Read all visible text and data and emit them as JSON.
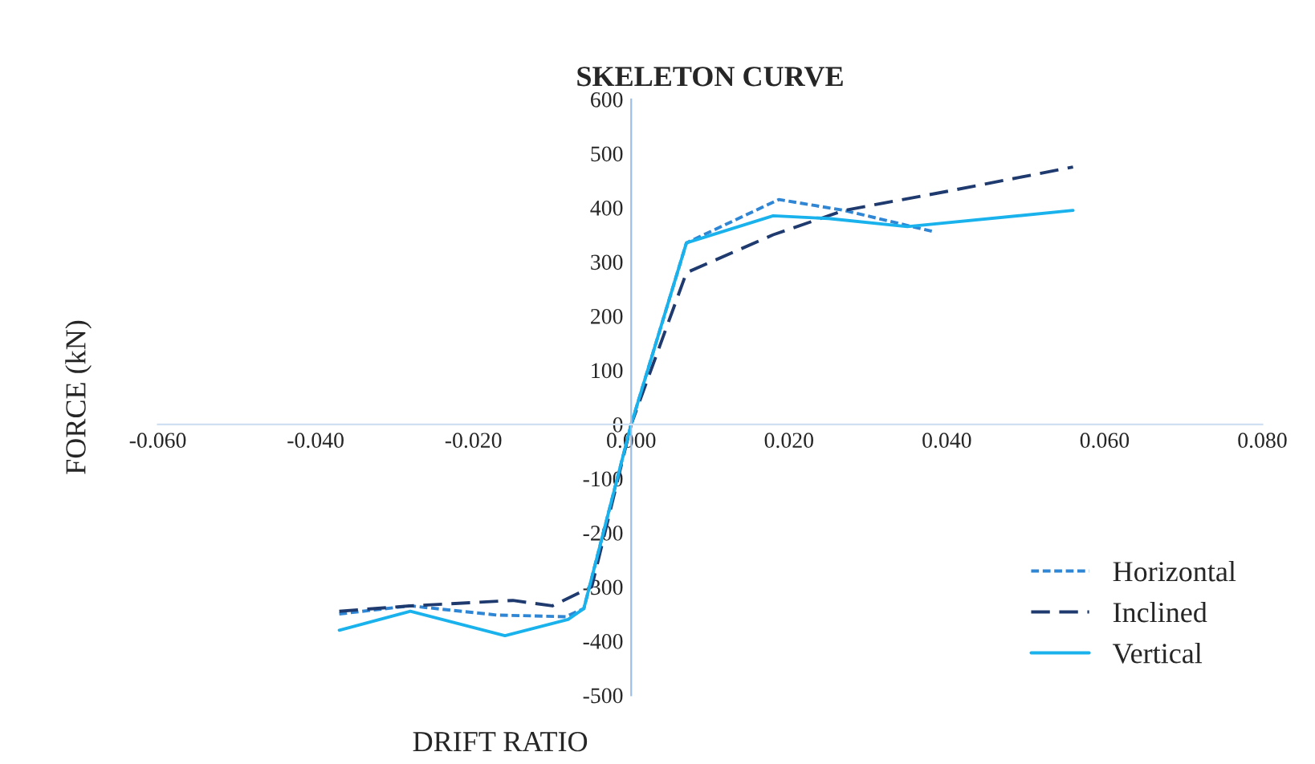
{
  "chart_data": {
    "type": "line",
    "title": "SKELETON CURVE",
    "xlabel": "DRIFT RATIO",
    "ylabel": "FORCE (kN)",
    "xlim": [
      -0.06,
      0.08
    ],
    "xticks": [
      {
        "value": -0.06,
        "label": "-0.060"
      },
      {
        "value": -0.04,
        "label": "-0.040"
      },
      {
        "value": -0.02,
        "label": "-0.020"
      },
      {
        "value": 0,
        "label": "0.000"
      },
      {
        "value": 0.02,
        "label": "0.020"
      },
      {
        "value": 0.04,
        "label": "0.040"
      },
      {
        "value": 0.06,
        "label": "0.060"
      },
      {
        "value": 0.08,
        "label": "0.080"
      }
    ],
    "ylim": [
      -500,
      600
    ],
    "yticks": [
      -500,
      -400,
      -300,
      -200,
      -100,
      0,
      100,
      200,
      300,
      400,
      500,
      600
    ],
    "grid": false,
    "legend": "bottom right",
    "series": [
      {
        "name": "Horizontal",
        "color": "#2e86d4",
        "line_style": "dotted",
        "x": [
          -0.037,
          -0.028,
          -0.017,
          -0.0083,
          -0.006,
          0,
          0.007,
          0.0187,
          0.027,
          0.0385
        ],
        "values": [
          -350,
          -335,
          -352,
          -355,
          -340,
          0,
          335,
          415,
          395,
          355
        ]
      },
      {
        "name": "Inclined",
        "color": "#1f3a6e",
        "line_style": "dashed",
        "x": [
          -0.037,
          -0.028,
          -0.015,
          -0.01,
          -0.005,
          0,
          0.007,
          0.018,
          0.027,
          0.04,
          0.056
        ],
        "values": [
          -345,
          -335,
          -325,
          -335,
          -300,
          0,
          280,
          350,
          395,
          430,
          475
        ]
      },
      {
        "name": "Vertical",
        "color": "#19b2ec",
        "line_style": "solid",
        "x": [
          -0.037,
          -0.028,
          -0.016,
          -0.008,
          -0.006,
          0,
          0.007,
          0.018,
          0.025,
          0.035,
          0.056
        ],
        "values": [
          -380,
          -345,
          -390,
          -360,
          -340,
          0,
          335,
          385,
          380,
          365,
          395
        ]
      }
    ]
  }
}
